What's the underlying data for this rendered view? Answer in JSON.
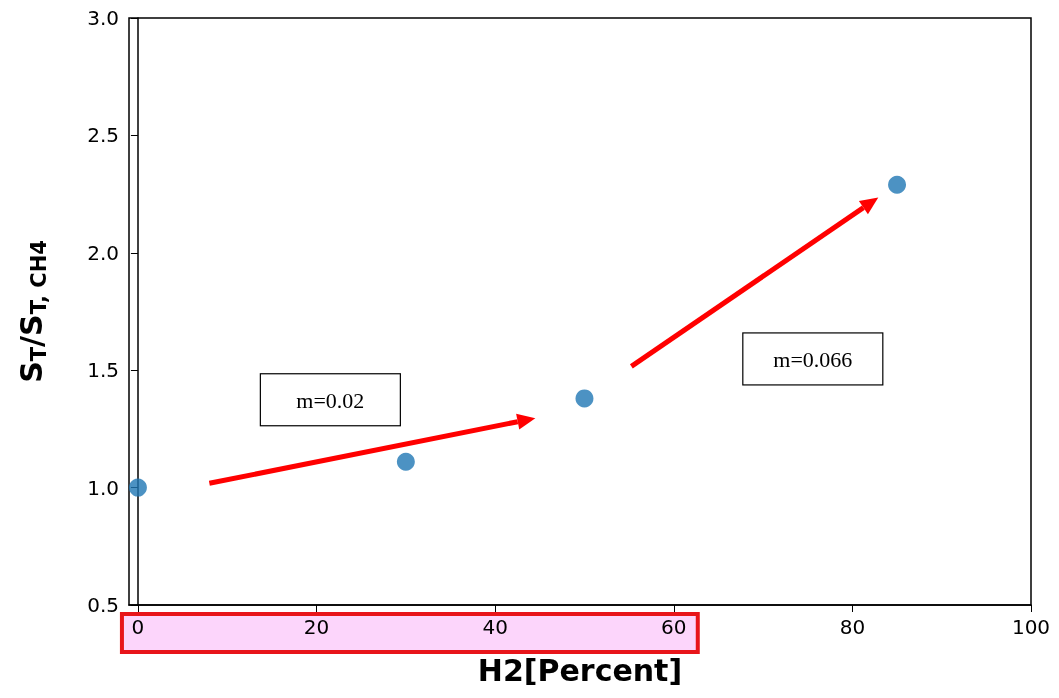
{
  "chart_data": {
    "type": "scatter",
    "xlabel": "H2[Percent]",
    "ylabel": "S$_{T}$/S$_{T, CH4}$",
    "x": [
      0,
      30,
      50,
      85
    ],
    "series": [
      {
        "color": "#1f77b4",
        "values": [
          1.0,
          1.11,
          1.38,
          2.29
        ]
      }
    ],
    "xlim": [
      -1,
      100
    ],
    "xticks": [
      0,
      20,
      40,
      60,
      80,
      100
    ],
    "ylim": [
      0.5,
      3.0
    ],
    "yticks": [
      0.5,
      {
        "value": 1,
        "label": "1.0"
      },
      1.5,
      {
        "value": 2,
        "label": "2.0"
      },
      2.5,
      {
        "value": 3,
        "label": "3.0"
      }
    ],
    "annotations": [
      "m=0.02",
      "m=0.066"
    ],
    "marker": "circle"
  }
}
